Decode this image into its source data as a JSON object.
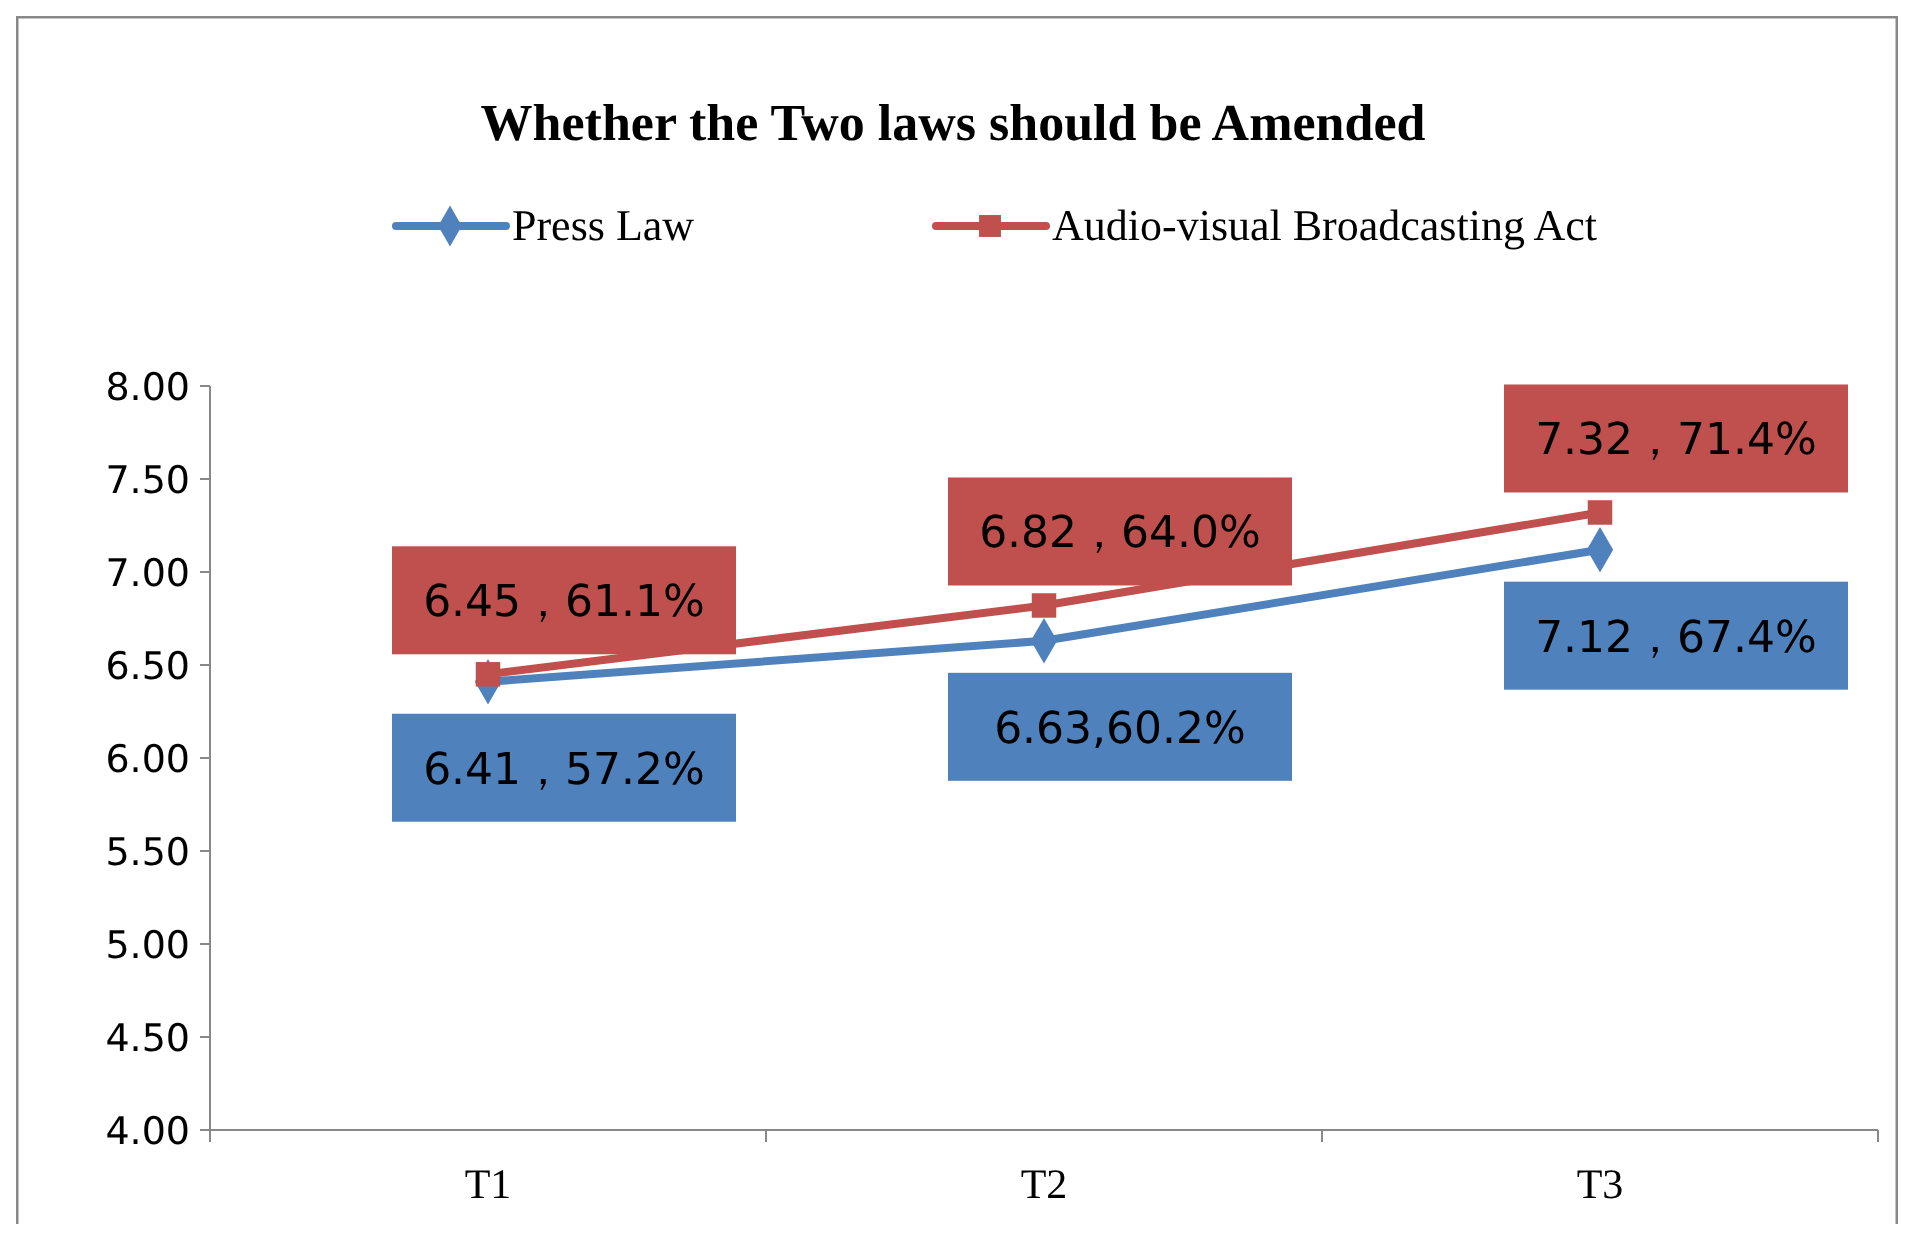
{
  "chart_data": {
    "type": "line",
    "title": "Whether the Two laws should be Amended",
    "categories": [
      "T1",
      "T2",
      "T3"
    ],
    "series": [
      {
        "name": "Press Law",
        "color": "#4f81bd",
        "marker": "diamond",
        "values": [
          6.41,
          6.63,
          7.12
        ],
        "value_labels": [
          "6.41，57.2%",
          "6.63,60.2%",
          "7.12，67.4%"
        ]
      },
      {
        "name": "Audio-visual Broadcasting Act",
        "color": "#c0504d",
        "marker": "square",
        "values": [
          6.45,
          6.82,
          7.32
        ],
        "value_labels": [
          "6.45，61.1%",
          "6.82，64.0%",
          "7.32，71.4%"
        ]
      }
    ],
    "ylim": [
      4,
      8
    ],
    "yticks": [
      {
        "value": 4,
        "label": "4.00"
      },
      {
        "value": 4.5,
        "label": "4.50"
      },
      {
        "value": 5,
        "label": "5.00"
      },
      {
        "value": 5.5,
        "label": "5.50"
      },
      {
        "value": 6,
        "label": "6.00"
      },
      {
        "value": 6.5,
        "label": "6.50"
      },
      {
        "value": 7,
        "label": "7.00"
      },
      {
        "value": 7.5,
        "label": "7.50"
      },
      {
        "value": 8,
        "label": "8.00"
      }
    ],
    "grid": false,
    "legend": "top",
    "line_style": "solid"
  }
}
